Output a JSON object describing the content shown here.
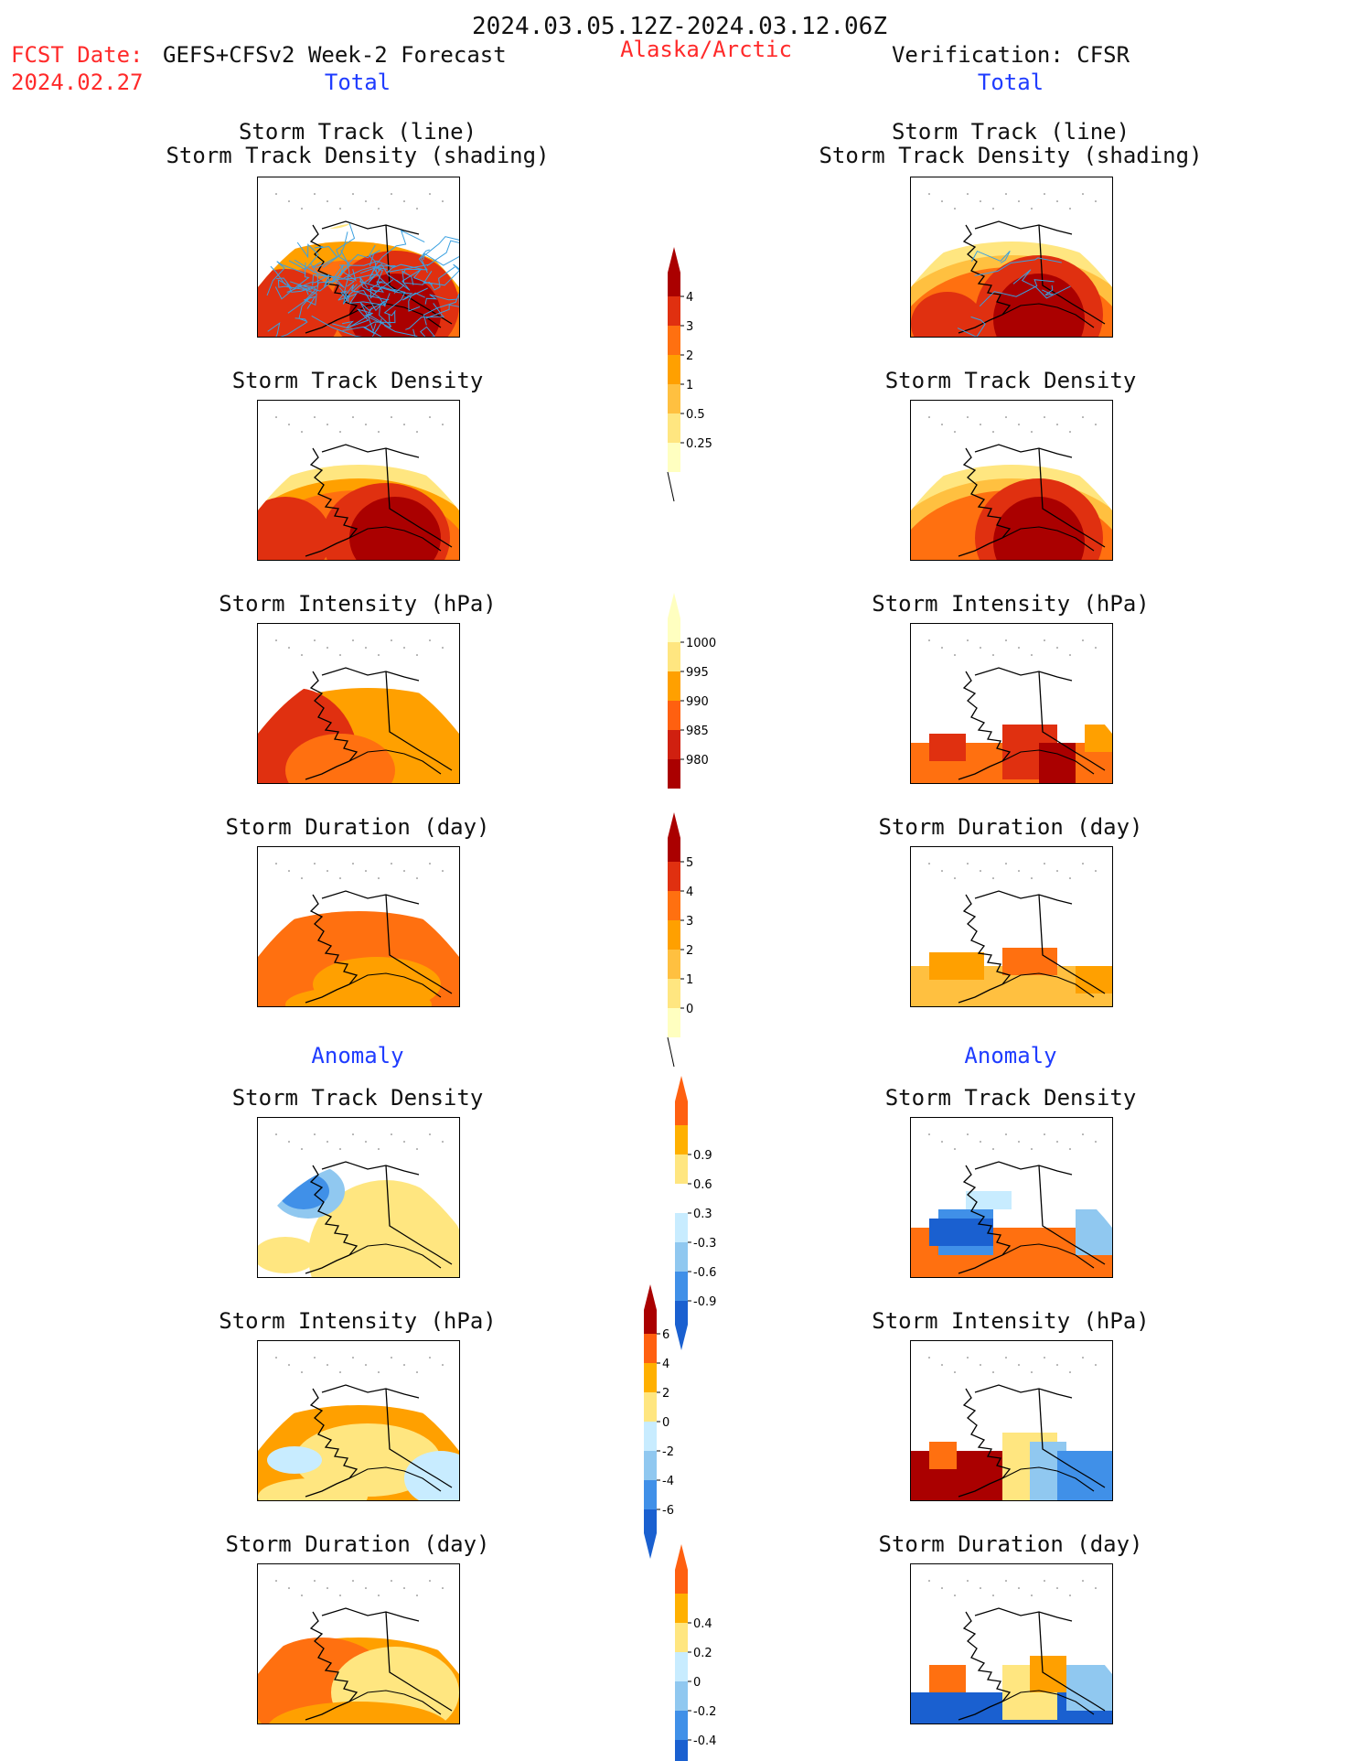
{
  "header": {
    "period": "2024.03.05.12Z-2024.03.12.06Z",
    "fcst_label": "FCST Date:",
    "fcst_model": "GEFS+CFSv2 Week-2 Forecast",
    "fcst_date": "2024.02.27",
    "region": "Alaska/Arctic",
    "verification": "Verification: CFSR"
  },
  "sections": {
    "total": "Total",
    "anomaly": "Anomaly"
  },
  "titles": {
    "track_line": "Storm Track (line)",
    "track_density_shading": "Storm Track Density (shading)",
    "track_density": "Storm Track Density",
    "intensity": "Storm Intensity (hPa)",
    "duration": "Storm Duration (day)"
  },
  "colors": {
    "title_red": "#ff2a2a",
    "section_blue": "#1f3cff",
    "track_lines": "#3aa0e0",
    "warm_scale": [
      "#ffffc0",
      "#ffe680",
      "#ffc040",
      "#ffa000",
      "#ff7010",
      "#e03010",
      "#aa0000"
    ],
    "div_scale": [
      "#1a60d0",
      "#4090e8",
      "#90c8f0",
      "#c8ecff",
      "#ffffff",
      "#ffe680",
      "#ffb000",
      "#ff6010",
      "#aa0000"
    ]
  },
  "chart_data": [
    {
      "type": "heatmap",
      "panel": "forecast-total-track",
      "title": "Storm Track (line) / Storm Track Density (shading)",
      "colorbar": "track-density"
    },
    {
      "type": "heatmap",
      "panel": "verification-total-track",
      "title": "Storm Track (line) / Storm Track Density (shading)",
      "colorbar": "track-density"
    },
    {
      "type": "heatmap",
      "panel": "forecast-total-density",
      "title": "Storm Track Density",
      "colorbar": "track-density"
    },
    {
      "type": "heatmap",
      "panel": "verification-total-density",
      "title": "Storm Track Density",
      "colorbar": "track-density"
    },
    {
      "type": "heatmap",
      "panel": "forecast-total-intensity",
      "title": "Storm Intensity (hPa)",
      "colorbar": "intensity"
    },
    {
      "type": "heatmap",
      "panel": "verification-total-intensity",
      "title": "Storm Intensity (hPa)",
      "colorbar": "intensity"
    },
    {
      "type": "heatmap",
      "panel": "forecast-total-duration",
      "title": "Storm Duration (day)",
      "colorbar": "duration"
    },
    {
      "type": "heatmap",
      "panel": "verification-total-duration",
      "title": "Storm Duration (day)",
      "colorbar": "duration"
    },
    {
      "type": "heatmap",
      "panel": "forecast-anom-density",
      "title": "Storm Track Density",
      "colorbar": "density-anomaly"
    },
    {
      "type": "heatmap",
      "panel": "verification-anom-density",
      "title": "Storm Track Density",
      "colorbar": "density-anomaly"
    },
    {
      "type": "heatmap",
      "panel": "forecast-anom-intensity",
      "title": "Storm Intensity (hPa)",
      "colorbar": "intensity-anomaly"
    },
    {
      "type": "heatmap",
      "panel": "verification-anom-intensity",
      "title": "Storm Intensity (hPa)",
      "colorbar": "intensity-anomaly"
    },
    {
      "type": "heatmap",
      "panel": "forecast-anom-duration",
      "title": "Storm Duration (day)",
      "colorbar": "duration-anomaly"
    },
    {
      "type": "heatmap",
      "panel": "verification-anom-duration",
      "title": "Storm Duration (day)",
      "colorbar": "duration-anomaly"
    }
  ],
  "colorbars": [
    {
      "id": "track-density",
      "ticks": [
        "0.25",
        "0.5",
        "1",
        "2",
        "3",
        "4"
      ],
      "colors": [
        "#ffffc0",
        "#ffe680",
        "#ffc040",
        "#ffa000",
        "#ff7010",
        "#e03010",
        "#aa0000"
      ],
      "tail": "bottom"
    },
    {
      "id": "intensity",
      "ticks": [
        "980",
        "985",
        "990",
        "995",
        "1000"
      ],
      "colors": [
        "#aa0000",
        "#d02010",
        "#ff6010",
        "#ffa000",
        "#ffe680",
        "#ffffc0"
      ],
      "tail": "top"
    },
    {
      "id": "duration",
      "ticks": [
        "0",
        "1",
        "2",
        "3",
        "4",
        "5"
      ],
      "colors": [
        "#ffffc0",
        "#ffe680",
        "#ffc040",
        "#ffa000",
        "#ff7010",
        "#e03010",
        "#aa0000"
      ],
      "tail": "bottom"
    },
    {
      "id": "density-anomaly",
      "ticks": [
        "-0.9",
        "-0.6",
        "-0.3",
        "0.3",
        "0.6",
        "0.9"
      ],
      "colors": [
        "#1a60d0",
        "#4090e8",
        "#90c8f0",
        "#c8ecff",
        "#ffffff",
        "#ffe680",
        "#ffb000",
        "#ff6010"
      ]
    },
    {
      "id": "intensity-anomaly",
      "ticks": [
        "-6",
        "-4",
        "-2",
        "0",
        "2",
        "4",
        "6"
      ],
      "colors": [
        "#1a60d0",
        "#4090e8",
        "#90c8f0",
        "#c8ecff",
        "#ffe680",
        "#ffb000",
        "#ff6010",
        "#aa0000"
      ]
    },
    {
      "id": "duration-anomaly",
      "ticks": [
        "-0.4",
        "-0.2",
        "0",
        "0.2",
        "0.4"
      ],
      "colors": [
        "#1a60d0",
        "#4090e8",
        "#90c8f0",
        "#c8ecff",
        "#ffe680",
        "#ffb000",
        "#ff6010"
      ]
    }
  ]
}
